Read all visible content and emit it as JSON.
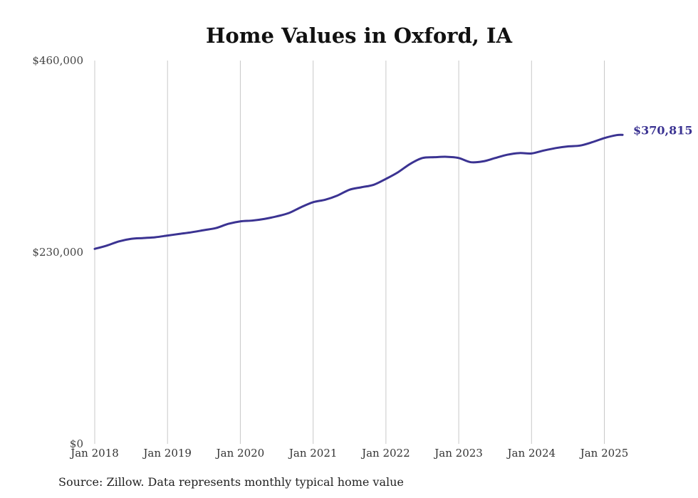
{
  "chart_data": {
    "type": "line",
    "title": "Home Values in Oxford, IA",
    "xlabel": "",
    "ylabel": "",
    "ylim": [
      0,
      460000
    ],
    "xlim": [
      "2018-01",
      "2025-04"
    ],
    "y_ticks": [
      0,
      230000,
      460000
    ],
    "y_tick_labels": [
      "$0",
      "$230,000",
      "$460,000"
    ],
    "x_ticks": [
      "2018-01",
      "2019-01",
      "2020-01",
      "2021-01",
      "2022-01",
      "2023-01",
      "2024-01",
      "2025-01"
    ],
    "x_tick_labels": [
      "Jan 2018",
      "Jan 2019",
      "Jan 2020",
      "Jan 2021",
      "Jan 2022",
      "Jan 2023",
      "Jan 2024",
      "Jan 2025"
    ],
    "grid": "vertical",
    "series": [
      {
        "color": "#3b3392",
        "x": [
          "2018-01",
          "2018-03",
          "2018-05",
          "2018-07",
          "2018-09",
          "2018-11",
          "2019-01",
          "2019-03",
          "2019-05",
          "2019-07",
          "2019-09",
          "2019-11",
          "2020-01",
          "2020-03",
          "2020-05",
          "2020-07",
          "2020-09",
          "2020-11",
          "2021-01",
          "2021-03",
          "2021-05",
          "2021-07",
          "2021-09",
          "2021-11",
          "2022-01",
          "2022-03",
          "2022-05",
          "2022-07",
          "2022-09",
          "2022-11",
          "2023-01",
          "2023-03",
          "2023-05",
          "2023-07",
          "2023-09",
          "2023-11",
          "2024-01",
          "2024-03",
          "2024-05",
          "2024-07",
          "2024-09",
          "2024-11",
          "2025-01",
          "2025-03",
          "2025-04"
        ],
        "values": [
          234000,
          238000,
          243000,
          246000,
          247000,
          248000,
          250000,
          252000,
          254000,
          256500,
          259000,
          264000,
          267000,
          268000,
          270000,
          273000,
          277000,
          284000,
          290000,
          293000,
          298000,
          305000,
          308000,
          311000,
          318000,
          326000,
          336000,
          343000,
          344000,
          344500,
          343000,
          338000,
          339000,
          343000,
          347000,
          349000,
          348500,
          352000,
          355000,
          357000,
          358000,
          362000,
          367000,
          370500,
          370815
        ]
      }
    ],
    "end_label": "$370,815"
  },
  "footer": {
    "source": "Source: Zillow. Data represents monthly typical home value"
  }
}
